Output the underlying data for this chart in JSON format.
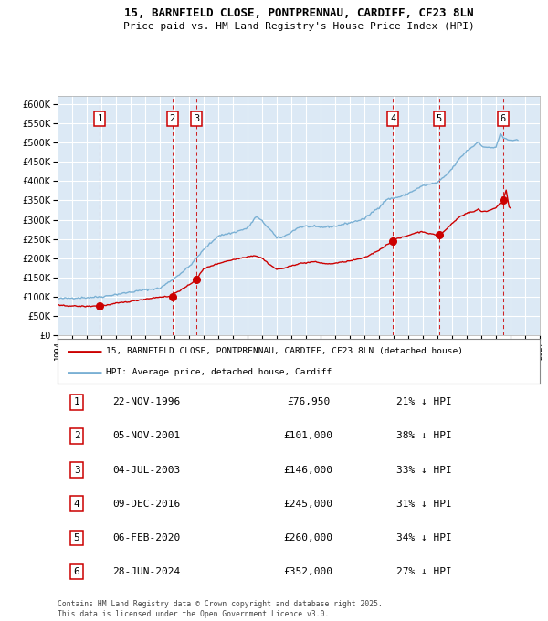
{
  "title_line1": "15, BARNFIELD CLOSE, PONTPRENNAU, CARDIFF, CF23 8LN",
  "title_line2": "Price paid vs. HM Land Registry's House Price Index (HPI)",
  "legend_label_red": "15, BARNFIELD CLOSE, PONTPRENNAU, CARDIFF, CF23 8LN (detached house)",
  "legend_label_blue": "HPI: Average price, detached house, Cardiff",
  "footer_line1": "Contains HM Land Registry data © Crown copyright and database right 2025.",
  "footer_line2": "This data is licensed under the Open Government Licence v3.0.",
  "transactions": [
    {
      "num": 1,
      "date": "22-NOV-1996",
      "price": 76950,
      "pct": "21%",
      "x_year": 1996.9
    },
    {
      "num": 2,
      "date": "05-NOV-2001",
      "price": 101000,
      "pct": "38%",
      "x_year": 2001.85
    },
    {
      "num": 3,
      "date": "04-JUL-2003",
      "price": 146000,
      "pct": "33%",
      "x_year": 2003.5
    },
    {
      "num": 4,
      "date": "09-DEC-2016",
      "price": 245000,
      "pct": "31%",
      "x_year": 2016.95
    },
    {
      "num": 5,
      "date": "06-FEB-2020",
      "price": 260000,
      "pct": "34%",
      "x_year": 2020.1
    },
    {
      "num": 6,
      "date": "28-JUN-2024",
      "price": 352000,
      "pct": "27%",
      "x_year": 2024.5
    }
  ],
  "ylim": [
    0,
    620000
  ],
  "xlim_start": 1994.0,
  "xlim_end": 2027.0,
  "bg_color": "#dce9f5",
  "grid_color": "#ffffff",
  "red_line_color": "#cc0000",
  "blue_line_color": "#7ab0d4",
  "dashed_line_color": "#cc0000",
  "marker_color": "#cc0000",
  "hpi_anchors": [
    [
      1994.0,
      95000
    ],
    [
      1995.0,
      97000
    ],
    [
      1996.0,
      98000
    ],
    [
      1997.0,
      100000
    ],
    [
      1998.0,
      106000
    ],
    [
      1999.0,
      112000
    ],
    [
      2000.0,
      118000
    ],
    [
      2001.0,
      122000
    ],
    [
      2002.0,
      148000
    ],
    [
      2003.0,
      178000
    ],
    [
      2004.0,
      222000
    ],
    [
      2005.0,
      258000
    ],
    [
      2006.0,
      266000
    ],
    [
      2007.0,
      278000
    ],
    [
      2007.6,
      308000
    ],
    [
      2008.0,
      296000
    ],
    [
      2008.7,
      268000
    ],
    [
      2009.0,
      252000
    ],
    [
      2009.5,
      256000
    ],
    [
      2010.0,
      268000
    ],
    [
      2010.5,
      280000
    ],
    [
      2011.0,
      283000
    ],
    [
      2012.0,
      280000
    ],
    [
      2013.0,
      283000
    ],
    [
      2014.0,
      292000
    ],
    [
      2015.0,
      302000
    ],
    [
      2015.5,
      318000
    ],
    [
      2016.0,
      332000
    ],
    [
      2016.5,
      352000
    ],
    [
      2017.0,
      356000
    ],
    [
      2017.5,
      360000
    ],
    [
      2018.0,
      368000
    ],
    [
      2018.5,
      378000
    ],
    [
      2019.0,
      388000
    ],
    [
      2019.5,
      392000
    ],
    [
      2020.0,
      396000
    ],
    [
      2020.5,
      412000
    ],
    [
      2021.0,
      432000
    ],
    [
      2021.5,
      458000
    ],
    [
      2022.0,
      478000
    ],
    [
      2022.5,
      492000
    ],
    [
      2022.8,
      502000
    ],
    [
      2023.0,
      492000
    ],
    [
      2023.5,
      486000
    ],
    [
      2024.0,
      488000
    ],
    [
      2024.3,
      522000
    ],
    [
      2024.5,
      512000
    ],
    [
      2024.9,
      506000
    ],
    [
      2025.5,
      506000
    ]
  ],
  "red_anchors": [
    [
      1994.0,
      78000
    ],
    [
      1995.0,
      76000
    ],
    [
      1996.0,
      75000
    ],
    [
      1996.9,
      76950
    ],
    [
      1997.5,
      79000
    ],
    [
      1998.0,
      83000
    ],
    [
      1999.0,
      88000
    ],
    [
      2000.0,
      94000
    ],
    [
      2001.0,
      99500
    ],
    [
      2001.85,
      101000
    ],
    [
      2002.0,
      109000
    ],
    [
      2002.5,
      119000
    ],
    [
      2003.0,
      130000
    ],
    [
      2003.5,
      146000
    ],
    [
      2004.0,
      172000
    ],
    [
      2004.5,
      180000
    ],
    [
      2005.0,
      186000
    ],
    [
      2005.5,
      192000
    ],
    [
      2006.0,
      196000
    ],
    [
      2006.5,
      200000
    ],
    [
      2007.0,
      204000
    ],
    [
      2007.5,
      207000
    ],
    [
      2008.0,
      200000
    ],
    [
      2008.5,
      184000
    ],
    [
      2009.0,
      171000
    ],
    [
      2009.5,
      174000
    ],
    [
      2010.0,
      180000
    ],
    [
      2010.5,
      186000
    ],
    [
      2011.0,
      188000
    ],
    [
      2011.5,
      191000
    ],
    [
      2012.0,
      188000
    ],
    [
      2012.5,
      185000
    ],
    [
      2013.0,
      187000
    ],
    [
      2013.5,
      190000
    ],
    [
      2014.0,
      193000
    ],
    [
      2014.5,
      197000
    ],
    [
      2015.0,
      201000
    ],
    [
      2015.5,
      211000
    ],
    [
      2016.0,
      221000
    ],
    [
      2016.5,
      234000
    ],
    [
      2016.95,
      245000
    ],
    [
      2017.0,
      248000
    ],
    [
      2017.5,
      253000
    ],
    [
      2018.0,
      259000
    ],
    [
      2018.5,
      266000
    ],
    [
      2019.0,
      269000
    ],
    [
      2019.5,
      263000
    ],
    [
      2020.1,
      260000
    ],
    [
      2020.5,
      271000
    ],
    [
      2021.0,
      290000
    ],
    [
      2021.5,
      307000
    ],
    [
      2022.0,
      317000
    ],
    [
      2022.5,
      321000
    ],
    [
      2022.8,
      327000
    ],
    [
      2023.0,
      321000
    ],
    [
      2023.5,
      323000
    ],
    [
      2024.0,
      331000
    ],
    [
      2024.5,
      352000
    ],
    [
      2024.7,
      376000
    ],
    [
      2024.9,
      332000
    ],
    [
      2025.0,
      330000
    ]
  ]
}
